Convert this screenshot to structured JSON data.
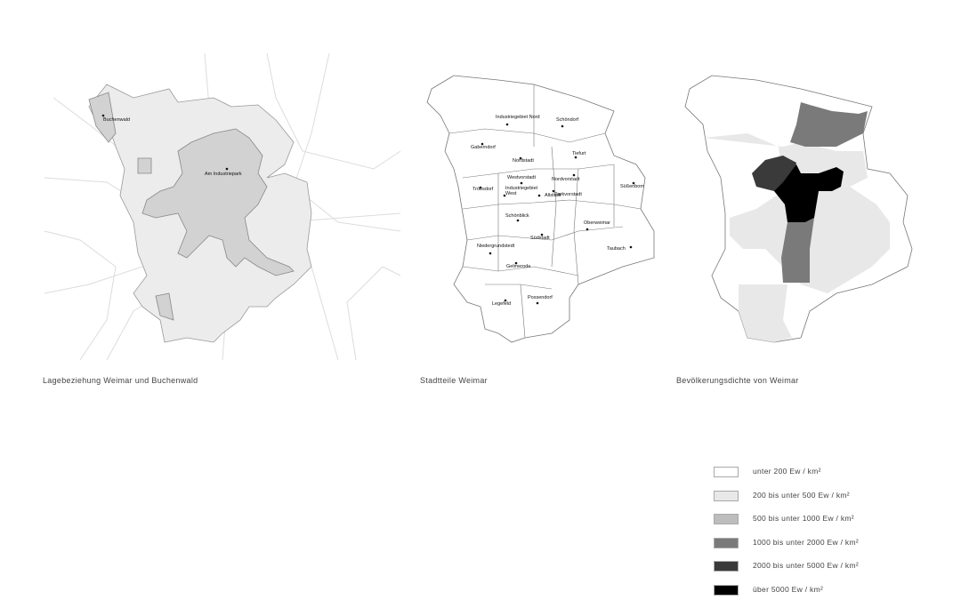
{
  "maps": [
    {
      "caption": "Lagebeziehung Weimar und Buchenwald",
      "labels": [
        "Buchenwald",
        "Am Industriepark"
      ]
    },
    {
      "caption": "Stadtteile Weimar",
      "labels": [
        "Industriegebiet Nord",
        "Schöndorf",
        "Gaberndorf",
        "Tiefurt",
        "Nordstadt",
        "Westvorstadt",
        "Nordvorstadt",
        "Süßenborn",
        "Tröbsdorf",
        "Industriegebiet West",
        "Altstadt",
        "Parkvorstadt",
        "Schönblick",
        "Oberweimar",
        "Südstadt",
        "Niedergrundstedt",
        "Taubach",
        "Gelmeroda",
        "Legefeld",
        "Possendorf"
      ]
    },
    {
      "caption": "Bevölkerungsdichte von Weimar"
    }
  ],
  "legend": [
    {
      "label": "unter 200 Ew / km²",
      "color": "#ffffff"
    },
    {
      "label": "200 bis unter 500 Ew / km²",
      "color": "#e8e8e8"
    },
    {
      "label": "500 bis unter 1000 Ew / km²",
      "color": "#bdbdbd"
    },
    {
      "label": "1000 bis unter 2000 Ew / km²",
      "color": "#7a7a7a"
    },
    {
      "label": "2000 bis unter 5000 Ew / km²",
      "color": "#3a3a3a"
    },
    {
      "label": "über 5000 Ew / km²",
      "color": "#000000"
    }
  ]
}
